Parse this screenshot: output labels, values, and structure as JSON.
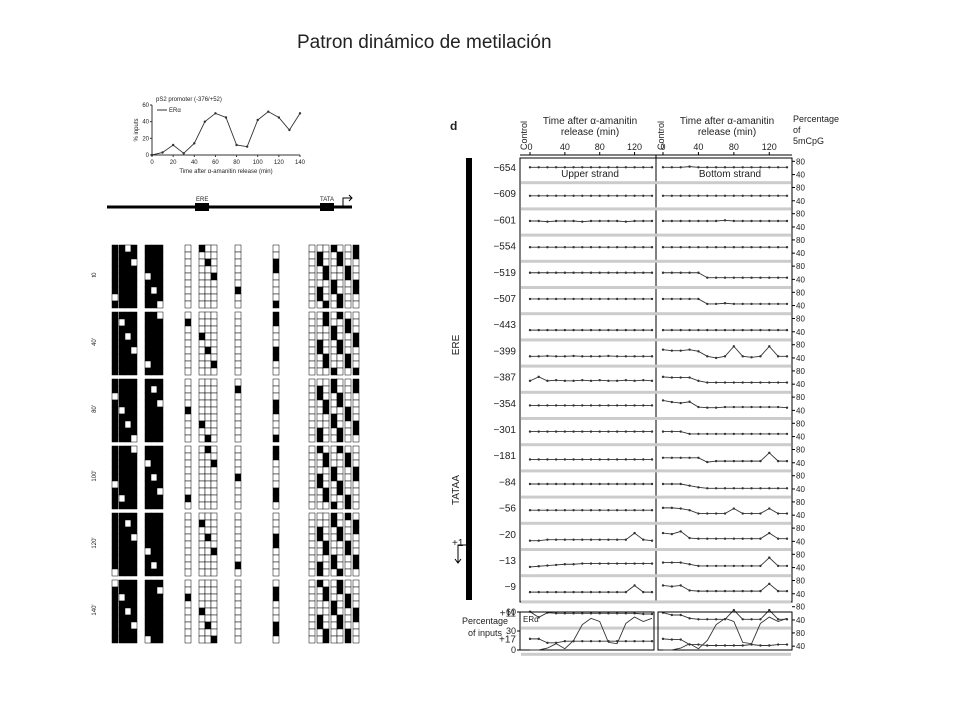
{
  "title": "Patron dinámico de metilación",
  "top_plot": {
    "title": "pS2 promoter (-376/+52)",
    "legend": "ERα",
    "ylabel": "% inputs",
    "xlabel": "Time after α-amanitin release (min)",
    "x": [
      0,
      10,
      20,
      30,
      40,
      50,
      60,
      70,
      80,
      90,
      100,
      110,
      120,
      130,
      140
    ],
    "values": [
      0,
      3,
      12,
      2,
      14,
      40,
      50,
      45,
      12,
      10,
      42,
      52,
      45,
      30,
      50
    ],
    "xlim": [
      0,
      140
    ],
    "xticks": [
      0,
      20,
      40,
      60,
      80,
      100,
      120,
      140
    ],
    "ylim": [
      0,
      60
    ],
    "yticks": [
      0,
      20,
      40,
      60
    ]
  },
  "bisulfite": {
    "ere": "ERE",
    "tata": "TATA",
    "groups": [
      "t0",
      "40'",
      "80'",
      "100'",
      "120'",
      "140'"
    ]
  },
  "panel_d": {
    "letter": "d",
    "control": "Control",
    "time_label": [
      "Time after α-amanitin",
      "release (min)"
    ],
    "pct_label": [
      "Percentage",
      "of",
      "5mCpG"
    ],
    "upper": "Upper strand",
    "bottom": "Bottom strand",
    "xlim": [
      0,
      140
    ],
    "xticks": [
      0,
      40,
      80,
      120
    ],
    "ylim": [
      20,
      90
    ],
    "yticks": [
      80,
      40
    ],
    "ere": "ERE",
    "tataa": "TATAA",
    "plus1": "+1",
    "rows": [
      {
        "label": "−654",
        "upper": [
          62,
          62,
          62,
          62,
          62,
          62,
          62,
          62,
          62,
          62,
          62,
          62,
          62,
          62,
          62
        ],
        "bottom": [
          62,
          62,
          62,
          64,
          62,
          62,
          62,
          62,
          62,
          62,
          62,
          62,
          62,
          62,
          62
        ]
      },
      {
        "label": "−609",
        "upper": [
          55,
          55,
          55,
          55,
          55,
          55,
          55,
          55,
          55,
          55,
          55,
          55,
          55,
          55,
          55
        ],
        "bottom": [
          55,
          55,
          55,
          55,
          55,
          55,
          55,
          55,
          55,
          55,
          55,
          55,
          55,
          55,
          55
        ]
      },
      {
        "label": "−601",
        "upper": [
          58,
          58,
          56,
          58,
          58,
          58,
          56,
          58,
          58,
          58,
          58,
          56,
          58,
          58,
          58
        ],
        "bottom": [
          58,
          58,
          58,
          58,
          58,
          58,
          58,
          60,
          58,
          58,
          58,
          58,
          58,
          58,
          58
        ]
      },
      {
        "label": "−554",
        "upper": [
          58,
          58,
          58,
          58,
          58,
          58,
          58,
          58,
          58,
          58,
          58,
          58,
          58,
          58,
          58
        ],
        "bottom": [
          58,
          58,
          58,
          58,
          58,
          58,
          58,
          58,
          58,
          58,
          58,
          58,
          58,
          58,
          58
        ]
      },
      {
        "label": "−519",
        "upper": [
          60,
          60,
          60,
          60,
          60,
          60,
          60,
          60,
          60,
          60,
          60,
          60,
          60,
          60,
          60
        ],
        "bottom": [
          60,
          60,
          60,
          60,
          60,
          45,
          45,
          45,
          45,
          45,
          45,
          45,
          45,
          45,
          45
        ]
      },
      {
        "label": "−507",
        "upper": [
          60,
          60,
          60,
          60,
          60,
          60,
          60,
          60,
          60,
          60,
          60,
          60,
          60,
          60,
          60
        ],
        "bottom": [
          60,
          60,
          60,
          60,
          60,
          45,
          45,
          47,
          45,
          45,
          45,
          45,
          45,
          45,
          45
        ]
      },
      {
        "label": "−443",
        "upper": [
          45,
          45,
          45,
          45,
          45,
          45,
          45,
          45,
          45,
          45,
          45,
          45,
          45,
          45,
          45
        ],
        "bottom": [
          45,
          45,
          45,
          45,
          45,
          45,
          45,
          45,
          45,
          45,
          45,
          45,
          45,
          45,
          45
        ]
      },
      {
        "label": "−399",
        "upper": [
          45,
          45,
          46,
          45,
          45,
          46,
          45,
          45,
          45,
          46,
          45,
          45,
          45,
          45,
          45
        ],
        "bottom": [
          65,
          62,
          62,
          65,
          60,
          45,
          40,
          45,
          75,
          45,
          42,
          45,
          75,
          45,
          45
        ]
      },
      {
        "label": "−387",
        "upper": [
          50,
          62,
          50,
          52,
          50,
          50,
          52,
          50,
          52,
          50,
          50,
          52,
          50,
          52,
          50
        ],
        "bottom": [
          62,
          60,
          60,
          60,
          50,
          45,
          45,
          45,
          45,
          45,
          45,
          45,
          45,
          45,
          45
        ]
      },
      {
        "label": "−354",
        "upper": [
          55,
          55,
          55,
          55,
          55,
          55,
          55,
          55,
          55,
          55,
          55,
          55,
          55,
          55,
          55
        ],
        "bottom": [
          70,
          65,
          62,
          66,
          50,
          48,
          48,
          50,
          50,
          50,
          50,
          50,
          50,
          50,
          48
        ]
      },
      {
        "label": "−301",
        "upper": [
          55,
          55,
          55,
          55,
          55,
          55,
          55,
          55,
          55,
          55,
          55,
          55,
          55,
          55,
          55
        ],
        "bottom": [
          55,
          55,
          55,
          48,
          48,
          48,
          48,
          48,
          48,
          48,
          48,
          48,
          48,
          48,
          48
        ]
      },
      {
        "label": "−181",
        "upper": [
          50,
          50,
          50,
          50,
          50,
          50,
          50,
          50,
          50,
          50,
          50,
          50,
          50,
          50,
          50
        ],
        "bottom": [
          55,
          55,
          55,
          55,
          55,
          42,
          45,
          45,
          45,
          45,
          45,
          45,
          70,
          45,
          45
        ]
      },
      {
        "label": "−84",
        "upper": [
          55,
          55,
          55,
          55,
          55,
          55,
          55,
          55,
          55,
          55,
          55,
          55,
          55,
          55,
          55
        ],
        "bottom": [
          55,
          55,
          55,
          50,
          45,
          42,
          42,
          42,
          42,
          42,
          42,
          42,
          42,
          42,
          42
        ]
      },
      {
        "label": "−56",
        "upper": [
          55,
          55,
          55,
          55,
          55,
          55,
          55,
          55,
          55,
          55,
          55,
          55,
          55,
          55,
          55
        ],
        "bottom": [
          62,
          62,
          60,
          55,
          45,
          45,
          45,
          45,
          60,
          45,
          45,
          45,
          60,
          45,
          45
        ]
      },
      {
        "label": "−20",
        "upper": [
          42,
          42,
          45,
          45,
          45,
          45,
          45,
          45,
          45,
          45,
          45,
          45,
          65,
          45,
          42
        ],
        "bottom": [
          65,
          62,
          70,
          50,
          48,
          48,
          48,
          48,
          48,
          48,
          48,
          48,
          65,
          48,
          48
        ]
      },
      {
        "label": "−13",
        "upper": [
          42,
          44,
          46,
          48,
          50,
          50,
          52,
          52,
          52,
          52,
          52,
          52,
          52,
          52,
          52
        ],
        "bottom": [
          55,
          55,
          55,
          50,
          45,
          45,
          45,
          45,
          45,
          45,
          45,
          45,
          70,
          45,
          45
        ]
      },
      {
        "label": "−9",
        "upper": [
          45,
          45,
          45,
          45,
          45,
          45,
          45,
          45,
          45,
          45,
          45,
          45,
          65,
          45,
          45
        ],
        "bottom": [
          65,
          62,
          65,
          50,
          48,
          48,
          48,
          48,
          48,
          48,
          48,
          48,
          70,
          48,
          48
        ]
      },
      {
        "label": "+11",
        "upper": [
          65,
          48,
          62,
          60,
          60,
          60,
          60,
          60,
          60,
          60,
          60,
          60,
          60,
          58,
          58
        ],
        "bottom": [
          62,
          55,
          55,
          45,
          42,
          42,
          42,
          42,
          70,
          42,
          42,
          42,
          70,
          42,
          42
        ]
      },
      {
        "label": "+17",
        "upper": [
          62,
          62,
          50,
          50,
          55,
          55,
          55,
          55,
          55,
          55,
          55,
          55,
          55,
          55,
          55
        ],
        "bottom": [
          62,
          60,
          60,
          45,
          45,
          42,
          42,
          42,
          42,
          42,
          45,
          42,
          42,
          45,
          45
        ]
      }
    ],
    "inputs_label": [
      "Percentage",
      "of inputs"
    ],
    "era": "ERα",
    "era_ylim": [
      0,
      60
    ],
    "era_yticks": [
      60,
      30,
      0
    ],
    "era_values": [
      0,
      0,
      3,
      10,
      2,
      15,
      40,
      50,
      45,
      12,
      10,
      42,
      52,
      45,
      50
    ]
  }
}
